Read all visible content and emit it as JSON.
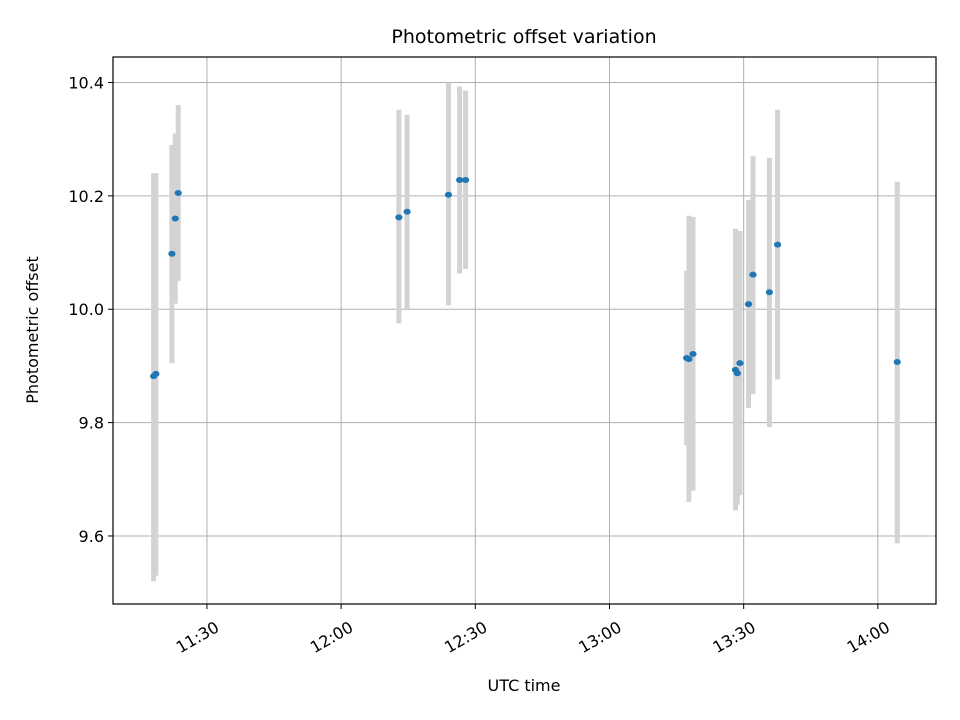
{
  "chart_data": {
    "type": "scatter",
    "title": "Photometric offset variation",
    "xlabel": "UTC time",
    "ylabel": "Photometric offset",
    "xlim": [
      "11:09",
      "14:13"
    ],
    "ylim": [
      9.48,
      10.445
    ],
    "x_ticks": [
      "11:30",
      "12:00",
      "12:30",
      "13:00",
      "13:30",
      "14:00"
    ],
    "y_ticks": [
      9.6,
      9.8,
      10.0,
      10.2,
      10.4
    ],
    "y_tick_labels": [
      "9.6",
      "9.8",
      "10.0",
      "10.2",
      "10.4"
    ],
    "grid": true,
    "colors": {
      "point": "#1f77b4",
      "errorbar": "#d3d3d3",
      "grid": "#b0b0b0"
    },
    "points": [
      {
        "t": "11:18:05",
        "y": 9.882,
        "lo": 9.52,
        "hi": 10.24
      },
      {
        "t": "11:18:35",
        "y": 9.886,
        "lo": 9.53,
        "hi": 10.24
      },
      {
        "t": "11:22:10",
        "y": 10.098,
        "lo": 9.905,
        "hi": 10.29
      },
      {
        "t": "11:22:55",
        "y": 10.16,
        "lo": 10.01,
        "hi": 10.31
      },
      {
        "t": "11:23:35",
        "y": 10.205,
        "lo": 10.05,
        "hi": 10.36
      },
      {
        "t": "12:12:55",
        "y": 10.162,
        "lo": 9.975,
        "hi": 10.352
      },
      {
        "t": "12:14:45",
        "y": 10.172,
        "lo": 10.0,
        "hi": 10.343
      },
      {
        "t": "12:24:00",
        "y": 10.202,
        "lo": 10.007,
        "hi": 10.4
      },
      {
        "t": "12:26:30",
        "y": 10.228,
        "lo": 10.063,
        "hi": 10.393
      },
      {
        "t": "12:27:50",
        "y": 10.228,
        "lo": 10.071,
        "hi": 10.386
      },
      {
        "t": "13:17:15",
        "y": 9.914,
        "lo": 9.76,
        "hi": 10.068
      },
      {
        "t": "13:17:45",
        "y": 9.912,
        "lo": 9.66,
        "hi": 10.165
      },
      {
        "t": "13:18:40",
        "y": 9.921,
        "lo": 9.68,
        "hi": 10.163
      },
      {
        "t": "13:28:10",
        "y": 9.893,
        "lo": 9.645,
        "hi": 10.142
      },
      {
        "t": "13:28:35",
        "y": 9.887,
        "lo": 9.655,
        "hi": 10.138
      },
      {
        "t": "13:29:10",
        "y": 9.905,
        "lo": 9.672,
        "hi": 10.138
      },
      {
        "t": "13:31:05",
        "y": 10.009,
        "lo": 9.826,
        "hi": 10.193
      },
      {
        "t": "13:32:05",
        "y": 10.061,
        "lo": 9.85,
        "hi": 10.27
      },
      {
        "t": "13:35:45",
        "y": 10.03,
        "lo": 9.792,
        "hi": 10.267
      },
      {
        "t": "13:37:35",
        "y": 10.114,
        "lo": 9.876,
        "hi": 10.352
      },
      {
        "t": "14:04:20",
        "y": 9.907,
        "lo": 9.587,
        "hi": 10.225
      }
    ]
  }
}
